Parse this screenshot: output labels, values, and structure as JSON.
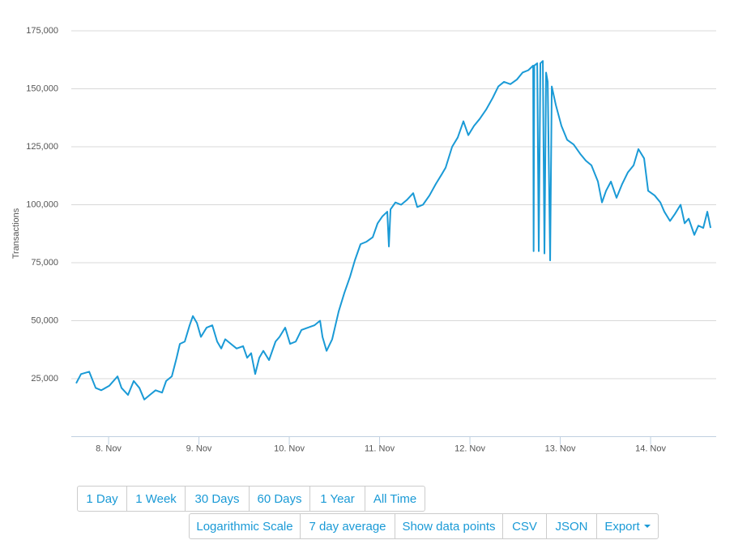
{
  "chart_data": {
    "type": "line",
    "y_label": "Transactions",
    "x": [
      7.641,
      7.695,
      7.785,
      7.857,
      7.919,
      8.009,
      8.099,
      8.143,
      8.215,
      8.278,
      8.341,
      8.395,
      8.457,
      8.52,
      8.592,
      8.637,
      8.7,
      8.753,
      8.789,
      8.843,
      8.897,
      8.933,
      8.978,
      9.022,
      9.085,
      9.148,
      9.202,
      9.247,
      9.291,
      9.354,
      9.417,
      9.489,
      9.534,
      9.578,
      9.623,
      9.668,
      9.713,
      9.776,
      9.848,
      9.892,
      9.955,
      10.009,
      10.072,
      10.135,
      10.206,
      10.278,
      10.341,
      10.368,
      10.413,
      10.475,
      10.547,
      10.61,
      10.673,
      10.726,
      10.789,
      10.852,
      10.924,
      10.978,
      11.031,
      11.085,
      11.103,
      11.121,
      11.175,
      11.238,
      11.3,
      11.372,
      11.417,
      11.48,
      11.552,
      11.623,
      11.686,
      11.731,
      11.803,
      11.865,
      11.928,
      11.982,
      12.045,
      12.108,
      12.179,
      12.251,
      12.314,
      12.377,
      12.448,
      12.52,
      12.583,
      12.646,
      12.7,
      12.705,
      12.712,
      12.745,
      12.762,
      12.78,
      12.807,
      12.825,
      12.843,
      12.861,
      12.888,
      12.906,
      12.951,
      13.013,
      13.076,
      13.148,
      13.22,
      13.283,
      13.345,
      13.417,
      13.462,
      13.507,
      13.561,
      13.623,
      13.686,
      13.749,
      13.812,
      13.865,
      13.928,
      13.973,
      14.045,
      14.108,
      14.152,
      14.215,
      14.269,
      14.332,
      14.377,
      14.422,
      14.484,
      14.529,
      14.583,
      14.628,
      14.664
    ],
    "series": [
      {
        "name": "Transactions",
        "color": "#1a9ad6",
        "values": [
          23000,
          27000,
          28000,
          21000,
          20000,
          22000,
          26000,
          21000,
          18000,
          24000,
          21000,
          16000,
          18000,
          20000,
          19000,
          24000,
          26000,
          34000,
          40000,
          41000,
          48000,
          52000,
          49000,
          43000,
          47000,
          48000,
          41000,
          38000,
          42000,
          40000,
          38000,
          39000,
          34000,
          36000,
          27000,
          34000,
          37000,
          33000,
          41000,
          43000,
          47000,
          40000,
          41000,
          46000,
          47000,
          48000,
          50000,
          43000,
          37000,
          42000,
          54000,
          62000,
          69000,
          76000,
          83000,
          84000,
          86000,
          92000,
          95000,
          97000,
          82000,
          98000,
          101000,
          100000,
          102000,
          105000,
          99000,
          100000,
          104000,
          109000,
          113000,
          116000,
          125000,
          129000,
          136000,
          130000,
          134000,
          137000,
          141000,
          146000,
          151000,
          153000,
          152000,
          154000,
          157000,
          158000,
          160000,
          80000,
          160000,
          161000,
          80000,
          161000,
          162000,
          79000,
          157000,
          153000,
          76000,
          151000,
          143000,
          134000,
          128000,
          126000,
          122000,
          119000,
          117000,
          110000,
          101000,
          106000,
          110000,
          103000,
          109000,
          114000,
          117000,
          124000,
          120000,
          106000,
          104000,
          101000,
          97000,
          93000,
          96000,
          100000,
          92000,
          94000,
          87000,
          91000,
          90000,
          97000,
          90000
        ]
      }
    ],
    "xlim": [
      7.587,
      14.726
    ],
    "xticks": [
      {
        "value": 8,
        "label": "8. Nov"
      },
      {
        "value": 9,
        "label": "9. Nov"
      },
      {
        "value": 10,
        "label": "10. Nov"
      },
      {
        "value": 11,
        "label": "11. Nov"
      },
      {
        "value": 12,
        "label": "12. Nov"
      },
      {
        "value": 13,
        "label": "13. Nov"
      },
      {
        "value": 14,
        "label": "14. Nov"
      }
    ],
    "ylim": [
      0,
      175000
    ],
    "yticks": [
      {
        "value": 25000,
        "label": "25,000"
      },
      {
        "value": 50000,
        "label": "50,000"
      },
      {
        "value": 75000,
        "label": "75,000"
      },
      {
        "value": 100000,
        "label": "100,000"
      },
      {
        "value": 125000,
        "label": "125,000"
      },
      {
        "value": 150000,
        "label": "150,000"
      },
      {
        "value": 175000,
        "label": "175,000"
      }
    ],
    "grid": true
  },
  "buttons": {
    "range": [
      "1 Day",
      "1 Week",
      "30 Days",
      "60 Days",
      "1 Year",
      "All Time"
    ],
    "options": [
      "Logarithmic Scale",
      "7 day average",
      "Show data points",
      "CSV",
      "JSON",
      "Export"
    ]
  }
}
